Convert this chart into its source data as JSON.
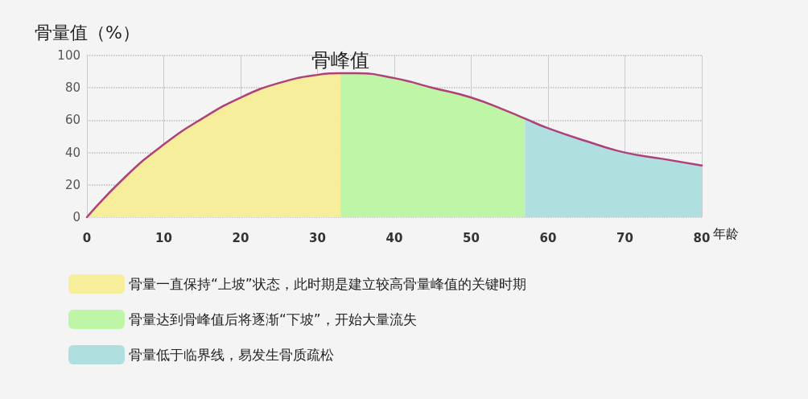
{
  "chart_data": {
    "type": "area",
    "ylabel": "骨量值（%）",
    "xlabel": "年龄",
    "annotations": [
      {
        "text": "骨峰值",
        "x": 33,
        "y": 89
      }
    ],
    "xlim": [
      0,
      80
    ],
    "xticks": [
      0,
      10,
      20,
      30,
      40,
      50,
      60,
      70,
      80
    ],
    "ylim": [
      0,
      100
    ],
    "yticks": [
      0,
      20,
      40,
      60,
      80,
      100
    ],
    "grid": true,
    "legend": "bottom",
    "marker": "none",
    "series": [
      {
        "name": "骨量一直保持“上坡”状态，此时期是建立较高骨量峰值的关键时期",
        "color": "#f7ee9c",
        "x": [
          0,
          5,
          10,
          15,
          20,
          25,
          30,
          33
        ],
        "values": [
          0,
          25,
          45,
          61,
          74,
          83,
          88,
          89
        ]
      },
      {
        "name": "骨量达到骨峰值后将逐渐“下坡”，开始大量流失",
        "color": "#bff5a6",
        "x": [
          33,
          35,
          40,
          45,
          50,
          55,
          57
        ],
        "values": [
          89,
          89,
          86,
          80,
          74,
          65,
          61
        ]
      },
      {
        "name": "骨量低于临界线，易发生骨质疏松",
        "color": "#b0dfe0",
        "x": [
          57,
          60,
          65,
          70,
          75,
          80
        ],
        "values": [
          61,
          55,
          47,
          40,
          36,
          32
        ]
      },
      {
        "type": "line",
        "color": "#b0407a",
        "x": [
          0,
          5,
          10,
          15,
          20,
          25,
          30,
          33,
          35,
          40,
          45,
          50,
          55,
          57,
          60,
          65,
          70,
          75,
          80
        ],
        "values": [
          0,
          25,
          45,
          61,
          74,
          83,
          88,
          89,
          89,
          86,
          80,
          74,
          65,
          61,
          55,
          47,
          40,
          36,
          32
        ]
      }
    ]
  }
}
